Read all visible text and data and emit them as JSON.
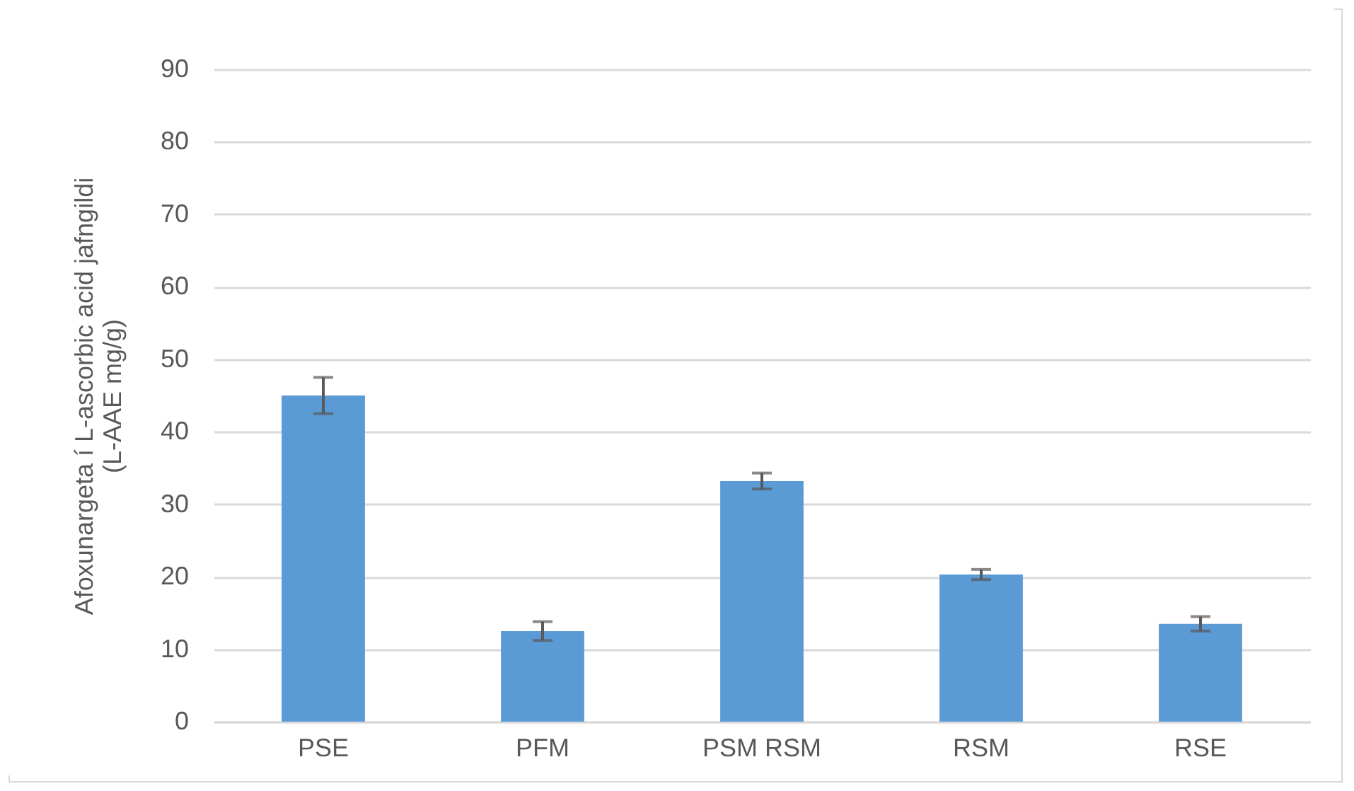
{
  "chart_data": {
    "type": "bar",
    "ylabel": "Afoxunargeta í  L-ascorbic acid jafngildi\n(L-AAE mg/g)",
    "categories": [
      "PSE",
      "PFM",
      "PSM RSM",
      "RSM",
      "RSE"
    ],
    "values": [
      45,
      12.5,
      33.2,
      20.3,
      13.5
    ],
    "errors": [
      2.5,
      1.3,
      1.1,
      0.7,
      1.0
    ],
    "color": "#5b9bd5",
    "ylim": [
      0,
      90
    ],
    "yticks": [
      0,
      10,
      20,
      30,
      40,
      50,
      60,
      70,
      80,
      90
    ],
    "grid": "y"
  }
}
